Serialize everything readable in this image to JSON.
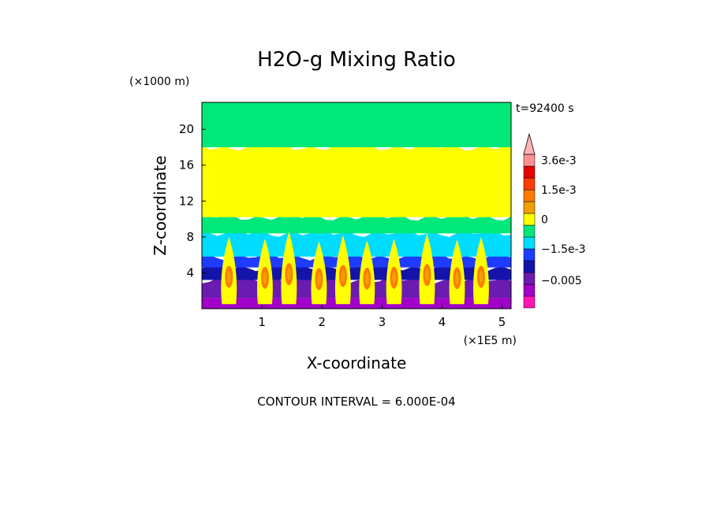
{
  "chart_data": {
    "type": "heatmap",
    "title": "H2O-g Mixing Ratio",
    "xlabel": "X-coordinate",
    "ylabel": "Z-coordinate",
    "x_unit": "(×1E5 m)",
    "y_unit": "(×1000 m)",
    "time_label": "t=92400 s",
    "footer": "CONTOUR INTERVAL = 6.000E-04",
    "xlim": [
      0,
      5.15
    ],
    "ylim": [
      0,
      23
    ],
    "x_ticks": [
      1,
      2,
      3,
      4,
      5
    ],
    "y_ticks": [
      4,
      8,
      12,
      16,
      20
    ],
    "colorbar": {
      "levels": [
        {
          "color": "#ff14b4",
          "value": -0.0066
        },
        {
          "color": "#a000c8",
          "value": -0.006
        },
        {
          "color": "#6a1bb0",
          "value": -0.0048
        },
        {
          "color": "#1414aa",
          "value": -0.0024
        },
        {
          "color": "#1e3cff",
          "value": -0.0018
        },
        {
          "color": "#00dcff",
          "value": -0.0012
        },
        {
          "color": "#00e87a",
          "value": -0.0006
        },
        {
          "color": "#ffff00",
          "value": 0
        },
        {
          "color": "#f0a000",
          "value": 0.0006
        },
        {
          "color": "#ff7a00",
          "value": 0.0012
        },
        {
          "color": "#ff3c00",
          "value": 0.0018
        },
        {
          "color": "#e60000",
          "value": 0.0024
        },
        {
          "color": "#ff9090",
          "value": 0.0036
        }
      ],
      "overflow_color": "#ffb4b4",
      "tick_labels": [
        {
          "label": "3.6e-3",
          "value": 0.0036
        },
        {
          "label": "1.5e-3",
          "value": 0.0015
        },
        {
          "label": "0",
          "value": 0
        },
        {
          "label": "−1.5e-3",
          "value": -0.0015
        },
        {
          "label": "−0.005",
          "value": -0.005
        }
      ]
    },
    "layers": [
      {
        "z_from": 0,
        "z_to": 1.2,
        "color": "#a000c8"
      },
      {
        "z_from": 1.2,
        "z_to": 3.2,
        "color": "#6a1bb0"
      },
      {
        "z_from": 3.2,
        "z_to": 4.6,
        "color": "#1414aa"
      },
      {
        "z_from": 4.6,
        "z_to": 5.8,
        "color": "#1e3cff"
      },
      {
        "z_from": 5.8,
        "z_to": 8.4,
        "color": "#00dcff"
      },
      {
        "z_from": 8.4,
        "z_to": 10.2,
        "color": "#00e87a"
      },
      {
        "z_from": 10.2,
        "z_to": 18.0,
        "color": "#ffff00"
      },
      {
        "z_from": 18.0,
        "z_to": 23.0,
        "color": "#00e87a"
      }
    ],
    "plumes": [
      {
        "x": 0.45,
        "z_top": 8.0
      },
      {
        "x": 1.05,
        "z_top": 7.8
      },
      {
        "x": 1.45,
        "z_top": 8.6
      },
      {
        "x": 1.95,
        "z_top": 7.5
      },
      {
        "x": 2.35,
        "z_top": 8.2
      },
      {
        "x": 2.75,
        "z_top": 7.6
      },
      {
        "x": 3.2,
        "z_top": 7.8
      },
      {
        "x": 3.75,
        "z_top": 8.4
      },
      {
        "x": 4.25,
        "z_top": 7.7
      },
      {
        "x": 4.65,
        "z_top": 8.0
      }
    ]
  }
}
